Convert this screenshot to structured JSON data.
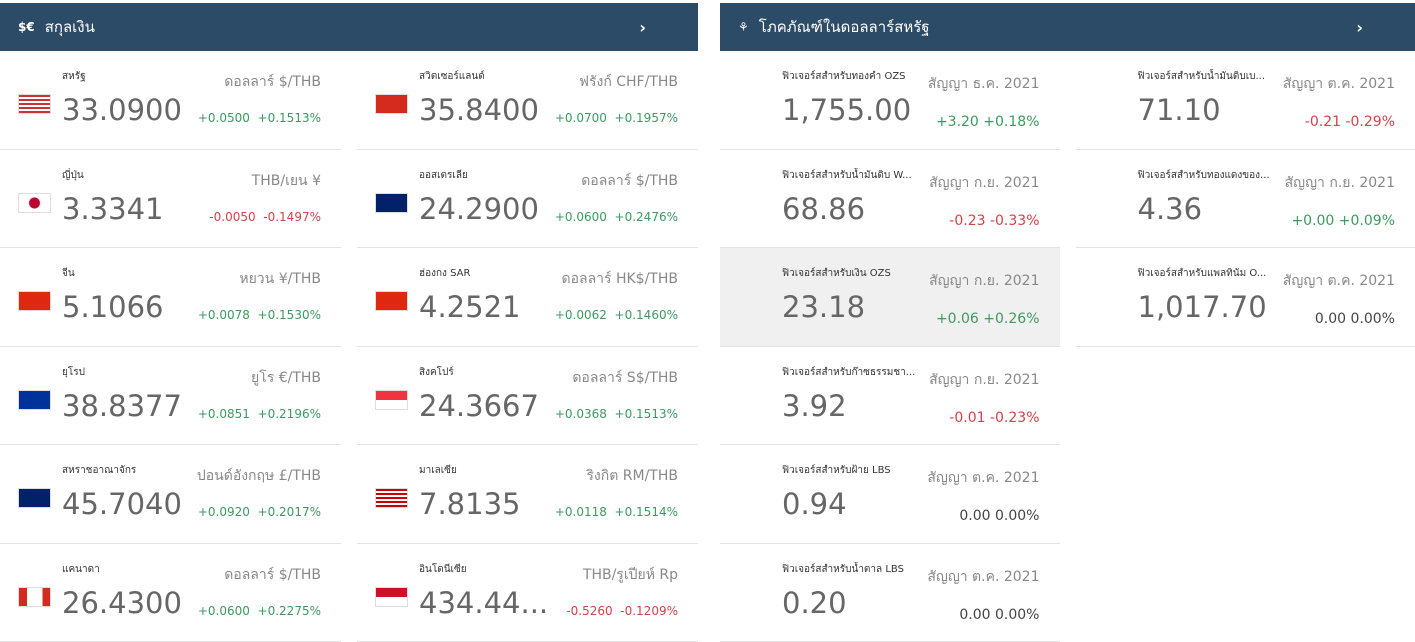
{
  "currencies": {
    "title": "สกุลเงิน",
    "icon": "$€",
    "items": [
      {
        "name": "สหรัฐ",
        "pair": "ดอลลาร์ $/THB",
        "value": "33.0900",
        "change": "+0.0500",
        "pct": "+0.1513%",
        "dir": "up",
        "flag": "us"
      },
      {
        "name": "สวิตเซอร์แลนด์",
        "pair": "ฟรังก์ CHF/THB",
        "value": "35.8400",
        "change": "+0.0700",
        "pct": "+0.1957%",
        "dir": "up",
        "flag": "ch"
      },
      {
        "name": "ญี่ปุ่น",
        "pair": "THB/เยน ¥",
        "value": "3.3341",
        "change": "-0.0050",
        "pct": "-0.1497%",
        "dir": "dn",
        "flag": "jp"
      },
      {
        "name": "ออสเตรเลีย",
        "pair": "ดอลลาร์ $/THB",
        "value": "24.2900",
        "change": "+0.0600",
        "pct": "+0.2476%",
        "dir": "up",
        "flag": "au"
      },
      {
        "name": "จีน",
        "pair": "หยวน ¥/THB",
        "value": "5.1066",
        "change": "+0.0078",
        "pct": "+0.1530%",
        "dir": "up",
        "flag": "cn"
      },
      {
        "name": "ฮ่องกง SAR",
        "pair": "ดอลลาร์ HK$/THB",
        "value": "4.2521",
        "change": "+0.0062",
        "pct": "+0.1460%",
        "dir": "up",
        "flag": "hk"
      },
      {
        "name": "ยุโรป",
        "pair": "ยูโร €/THB",
        "value": "38.8377",
        "change": "+0.0851",
        "pct": "+0.2196%",
        "dir": "up",
        "flag": "eu"
      },
      {
        "name": "สิงคโปร์",
        "pair": "ดอลลาร์ S$/THB",
        "value": "24.3667",
        "change": "+0.0368",
        "pct": "+0.1513%",
        "dir": "up",
        "flag": "sg"
      },
      {
        "name": "สหราชอาณาจักร",
        "pair": "ปอนด์อังกฤษ £/THB",
        "value": "45.7040",
        "change": "+0.0920",
        "pct": "+0.2017%",
        "dir": "up",
        "flag": "gb"
      },
      {
        "name": "มาเลเซีย",
        "pair": "ริงกิต RM/THB",
        "value": "7.8135",
        "change": "+0.0118",
        "pct": "+0.1514%",
        "dir": "up",
        "flag": "my"
      },
      {
        "name": "แคนาดา",
        "pair": "ดอลลาร์ $/THB",
        "value": "26.4300",
        "change": "+0.0600",
        "pct": "+0.2275%",
        "dir": "up",
        "flag": "ca"
      },
      {
        "name": "อินโดนีเซีย",
        "pair": "THB/รูเปียห์ Rp",
        "value": "434.44...",
        "change": "-0.5260",
        "pct": "-0.1209%",
        "dir": "dn",
        "flag": "id"
      }
    ]
  },
  "commodities": {
    "title": "โภคภัณฑ์ในดอลลาร์สหรัฐ",
    "items": [
      {
        "name": "ฟิวเจอร์สสำหรับทองคำ OZS",
        "contract": "สัญญา ธ.ค. 2021",
        "value": "1,755.00",
        "change": "+3.20 +0.18%",
        "dir": "up"
      },
      {
        "name": "ฟิวเจอร์สสำหรับน้ำมันดิบเบ...",
        "contract": "สัญญา ต.ค. 2021",
        "value": "71.10",
        "change": "-0.21 -0.29%",
        "dir": "dn"
      },
      {
        "name": "ฟิวเจอร์สสำหรับน้ำมันดิบ W...",
        "contract": "สัญญา ก.ย. 2021",
        "value": "68.86",
        "change": "-0.23 -0.33%",
        "dir": "dn"
      },
      {
        "name": "ฟิวเจอร์สสำหรับทองแดงของ...",
        "contract": "สัญญา ก.ย. 2021",
        "value": "4.36",
        "change": "+0.00 +0.09%",
        "dir": "up"
      },
      {
        "name": "ฟิวเจอร์สสำหรับเงิน OZS",
        "contract": "สัญญา ก.ย. 2021",
        "value": "23.18",
        "change": "+0.06 +0.26%",
        "dir": "up",
        "highlight": true
      },
      {
        "name": "ฟิวเจอร์สสำหรับแพลทินัม O...",
        "contract": "สัญญา ต.ค. 2021",
        "value": "1,017.70",
        "change": "0.00 0.00%",
        "dir": "fl"
      },
      {
        "name": "ฟิวเจอร์สสำหรับก๊าซธรรมชา...",
        "contract": "สัญญา ก.ย. 2021",
        "value": "3.92",
        "change": "-0.01 -0.23%",
        "dir": "dn"
      },
      null,
      {
        "name": "ฟิวเจอร์สสำหรับฝ้าย LBS",
        "contract": "สัญญา ต.ค. 2021",
        "value": "0.94",
        "change": "0.00 0.00%",
        "dir": "fl"
      },
      null,
      {
        "name": "ฟิวเจอร์สสำหรับน้ำตาล LBS",
        "contract": "สัญญา ต.ค. 2021",
        "value": "0.20",
        "change": "0.00 0.00%",
        "dir": "fl"
      }
    ]
  }
}
